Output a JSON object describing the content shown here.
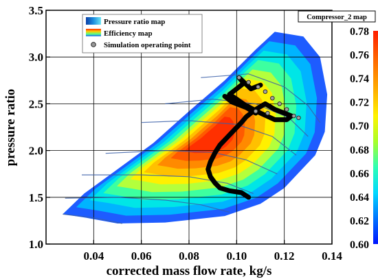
{
  "chart_data": {
    "type": "contour",
    "box_title": "Compressor_2 map",
    "xlabel": "corrected mass flow rate, kg/s",
    "ylabel": "pressure ratio",
    "xlim": [
      0.02,
      0.14
    ],
    "ylim": [
      1.0,
      3.5
    ],
    "xticks": [
      "0.04",
      "0.06",
      "0.08",
      "0.10",
      "0.12",
      "0.14"
    ],
    "yticks": [
      "1.0",
      "1.5",
      "2.0",
      "2.5",
      "3.0",
      "3.5"
    ],
    "grid": true,
    "legend_position": "top-left",
    "legend": [
      {
        "label": "Pressure ratio map",
        "marker": "blue-gradient-swatch"
      },
      {
        "label": "Efficiency map",
        "marker": "rainbow-gradient-swatch"
      },
      {
        "label": "Simulation operating point",
        "marker": "gray-circle"
      }
    ],
    "colorbar": {
      "label_ticks": [
        "0.78",
        "0.76",
        "0.74",
        "0.72",
        "0.70",
        "0.68",
        "0.66",
        "0.64",
        "0.62",
        "0.60"
      ],
      "min": 0.6,
      "max": 0.78,
      "position": "right"
    },
    "map_boundary": [
      [
        0.027,
        1.32
      ],
      [
        0.036,
        1.54
      ],
      [
        0.05,
        1.8
      ],
      [
        0.065,
        2.08
      ],
      [
        0.08,
        2.42
      ],
      [
        0.095,
        2.75
      ],
      [
        0.108,
        3.08
      ],
      [
        0.116,
        3.27
      ],
      [
        0.128,
        3.22
      ],
      [
        0.135,
        3.0
      ],
      [
        0.138,
        2.6
      ],
      [
        0.137,
        2.2
      ],
      [
        0.133,
        1.95
      ],
      [
        0.12,
        1.6
      ],
      [
        0.11,
        1.43
      ],
      [
        0.095,
        1.3
      ],
      [
        0.07,
        1.23
      ],
      [
        0.05,
        1.22
      ],
      [
        0.037,
        1.28
      ]
    ],
    "efficiency_peak": {
      "x": 0.09,
      "y": 2.15,
      "value": 0.77
    },
    "speed_lines": [
      [
        [
          0.027,
          1.32
        ],
        [
          0.04,
          1.28
        ],
        [
          0.052,
          1.22
        ]
      ],
      [
        [
          0.028,
          1.49
        ],
        [
          0.05,
          1.5
        ],
        [
          0.07,
          1.47
        ],
        [
          0.085,
          1.42
        ],
        [
          0.097,
          1.34
        ]
      ],
      [
        [
          0.035,
          1.74
        ],
        [
          0.06,
          1.74
        ],
        [
          0.08,
          1.72
        ],
        [
          0.096,
          1.65
        ],
        [
          0.107,
          1.54
        ]
      ],
      [
        [
          0.045,
          1.97
        ],
        [
          0.07,
          2.0
        ],
        [
          0.09,
          1.98
        ],
        [
          0.104,
          1.9
        ],
        [
          0.117,
          1.75
        ]
      ],
      [
        [
          0.06,
          2.3
        ],
        [
          0.08,
          2.32
        ],
        [
          0.1,
          2.28
        ],
        [
          0.115,
          2.15
        ],
        [
          0.125,
          1.95
        ]
      ],
      [
        [
          0.07,
          2.5
        ],
        [
          0.09,
          2.55
        ],
        [
          0.108,
          2.5
        ],
        [
          0.122,
          2.35
        ],
        [
          0.13,
          2.15
        ]
      ],
      [
        [
          0.085,
          2.78
        ],
        [
          0.105,
          2.82
        ],
        [
          0.12,
          2.68
        ],
        [
          0.13,
          2.48
        ],
        [
          0.135,
          2.3
        ]
      ]
    ],
    "operating_line": [
      [
        0.105,
        1.5
      ],
      [
        0.102,
        1.55
      ],
      [
        0.097,
        1.57
      ],
      [
        0.093,
        1.6
      ],
      [
        0.091,
        1.65
      ],
      [
        0.089,
        1.72
      ],
      [
        0.088,
        1.8
      ],
      [
        0.089,
        1.88
      ],
      [
        0.091,
        1.98
      ],
      [
        0.093,
        2.06
      ],
      [
        0.096,
        2.14
      ],
      [
        0.099,
        2.22
      ],
      [
        0.102,
        2.3
      ],
      [
        0.104,
        2.36
      ],
      [
        0.106,
        2.4
      ],
      [
        0.108,
        2.44
      ],
      [
        0.11,
        2.47
      ],
      [
        0.112,
        2.5
      ],
      [
        0.114,
        2.47
      ],
      [
        0.116,
        2.44
      ],
      [
        0.12,
        2.4
      ],
      [
        0.123,
        2.37
      ],
      [
        0.121,
        2.33
      ],
      [
        0.116,
        2.33
      ],
      [
        0.11,
        2.4
      ],
      [
        0.104,
        2.48
      ],
      [
        0.098,
        2.55
      ],
      [
        0.095,
        2.58
      ],
      [
        0.098,
        2.52
      ],
      [
        0.104,
        2.46
      ],
      [
        0.108,
        2.4
      ],
      [
        0.105,
        2.46
      ],
      [
        0.1,
        2.55
      ],
      [
        0.097,
        2.6
      ],
      [
        0.1,
        2.66
      ],
      [
        0.103,
        2.72
      ],
      [
        0.101,
        2.78
      ],
      [
        0.106,
        2.66
      ],
      [
        0.11,
        2.7
      ]
    ],
    "simulation_points": [
      [
        0.101,
        2.78
      ],
      [
        0.105,
        2.73
      ],
      [
        0.109,
        2.68
      ],
      [
        0.112,
        2.63
      ],
      [
        0.115,
        2.56
      ],
      [
        0.118,
        2.5
      ],
      [
        0.121,
        2.44
      ],
      [
        0.124,
        2.37
      ],
      [
        0.126,
        2.35
      ],
      [
        0.113,
        2.4
      ],
      [
        0.108,
        2.42
      ]
    ]
  }
}
